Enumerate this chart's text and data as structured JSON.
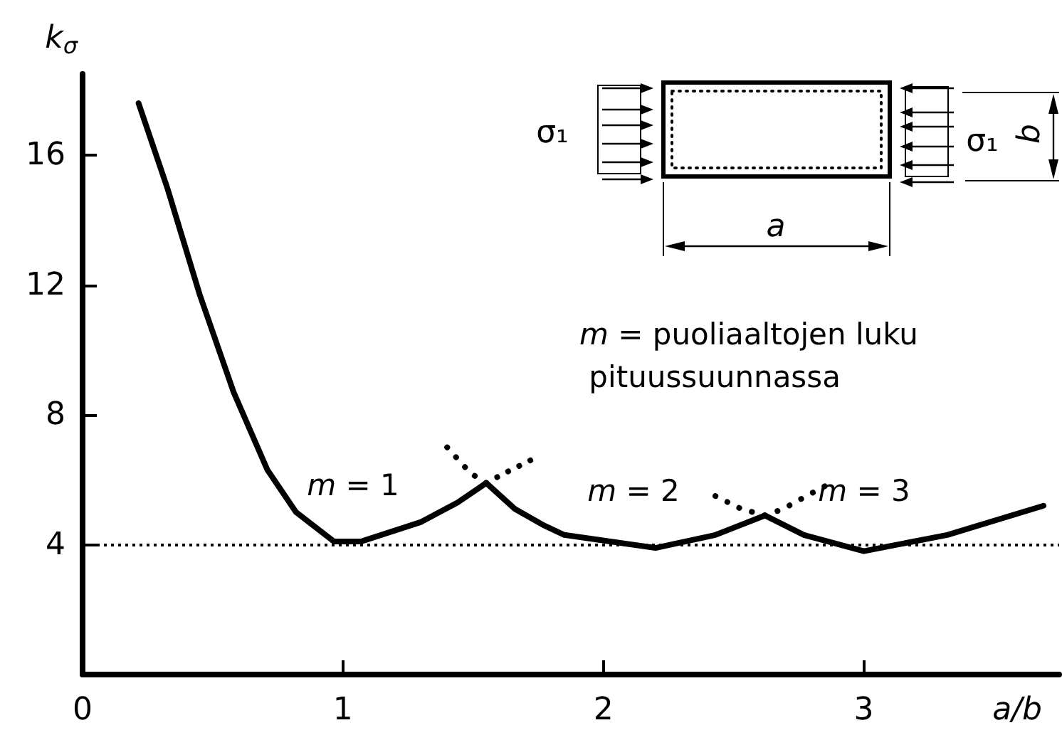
{
  "chart_data": {
    "type": "line",
    "xlabel": "a/b",
    "ylabel": "k$_{σ}$",
    "xlim": [
      0,
      3.75
    ],
    "ylim": [
      0,
      18.5
    ],
    "xticks": [
      0,
      1,
      2,
      3
    ],
    "yticks": [
      4,
      8,
      12,
      16
    ],
    "grid": false,
    "marker": "none",
    "series": [
      {
        "color": "#000000",
        "line_style": "solid",
        "x": [
          0.215,
          0.325,
          0.45,
          0.58,
          0.71,
          0.82,
          0.965,
          1.07,
          1.3,
          1.44,
          1.55,
          1.66,
          1.77,
          1.85,
          2.2,
          2.43,
          2.62,
          2.77,
          3.0,
          3.32,
          3.69
        ],
        "values": [
          17.6,
          15.0,
          11.7,
          8.7,
          6.3,
          5.0,
          4.1,
          4.1,
          4.7,
          5.3,
          5.9,
          5.1,
          4.6,
          4.3,
          3.9,
          4.3,
          4.9,
          4.3,
          3.8,
          4.3,
          5.2
        ]
      },
      {
        "color": "#000000",
        "line_style": "dotted",
        "x": [
          1.4,
          1.49,
          1.55
        ],
        "values": [
          7.0,
          6.2,
          5.9
        ]
      },
      {
        "color": "#000000",
        "line_style": "dotted",
        "x": [
          1.55,
          1.62,
          1.67,
          1.72
        ],
        "values": [
          5.9,
          6.2,
          6.4,
          6.6
        ]
      },
      {
        "color": "#000000",
        "line_style": "dotted",
        "x": [
          2.43,
          2.53,
          2.62
        ],
        "values": [
          5.5,
          5.1,
          4.9
        ]
      },
      {
        "color": "#000000",
        "line_style": "dotted",
        "x": [
          2.62,
          2.69,
          2.78,
          2.85
        ],
        "values": [
          4.9,
          5.1,
          5.5,
          5.8
        ]
      }
    ],
    "ref_lines": [
      {
        "axis": "y",
        "value": 4,
        "color": "#000000",
        "line_style": "dotted"
      }
    ],
    "annotations": [
      "m = 1",
      "m = 2",
      "m = 3",
      "m = puoliaaltojen luku pituussuunnassa",
      "σ₁",
      "σ₁",
      "a",
      "b"
    ]
  }
}
